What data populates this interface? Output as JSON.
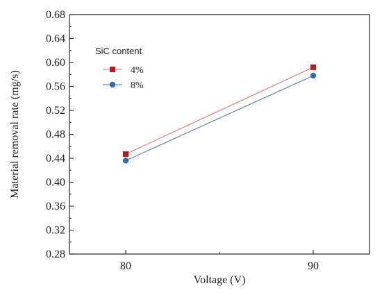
{
  "chart_data": {
    "type": "line",
    "title": "",
    "xlabel": "Voltage (V)",
    "ylabel": "Material removal rate (mg/s)",
    "x": [
      80,
      90
    ],
    "x_tick_labels": [
      "80",
      "90"
    ],
    "ylim": [
      0.28,
      0.68
    ],
    "y_ticks": [
      0.28,
      0.32,
      0.36,
      0.4,
      0.44,
      0.48,
      0.52,
      0.56,
      0.6,
      0.64,
      0.68
    ],
    "y_tick_labels": [
      "0.28",
      "0.32",
      "0.36",
      "0.40",
      "0.44",
      "0.48",
      "0.52",
      "0.56",
      "0.60",
      "0.64",
      "0.68"
    ],
    "legend_title": "SiC content",
    "legend_position": "upper-left",
    "grid": false,
    "series": [
      {
        "name": "4%",
        "marker": "square",
        "line_color": "#e08a8a",
        "marker_color": "#c0171d",
        "values": [
          0.447,
          0.592
        ]
      },
      {
        "name": "8%",
        "marker": "circle",
        "line_color": "#6a8fb3",
        "marker_color": "#2f6da8",
        "values": [
          0.436,
          0.578
        ]
      }
    ]
  }
}
